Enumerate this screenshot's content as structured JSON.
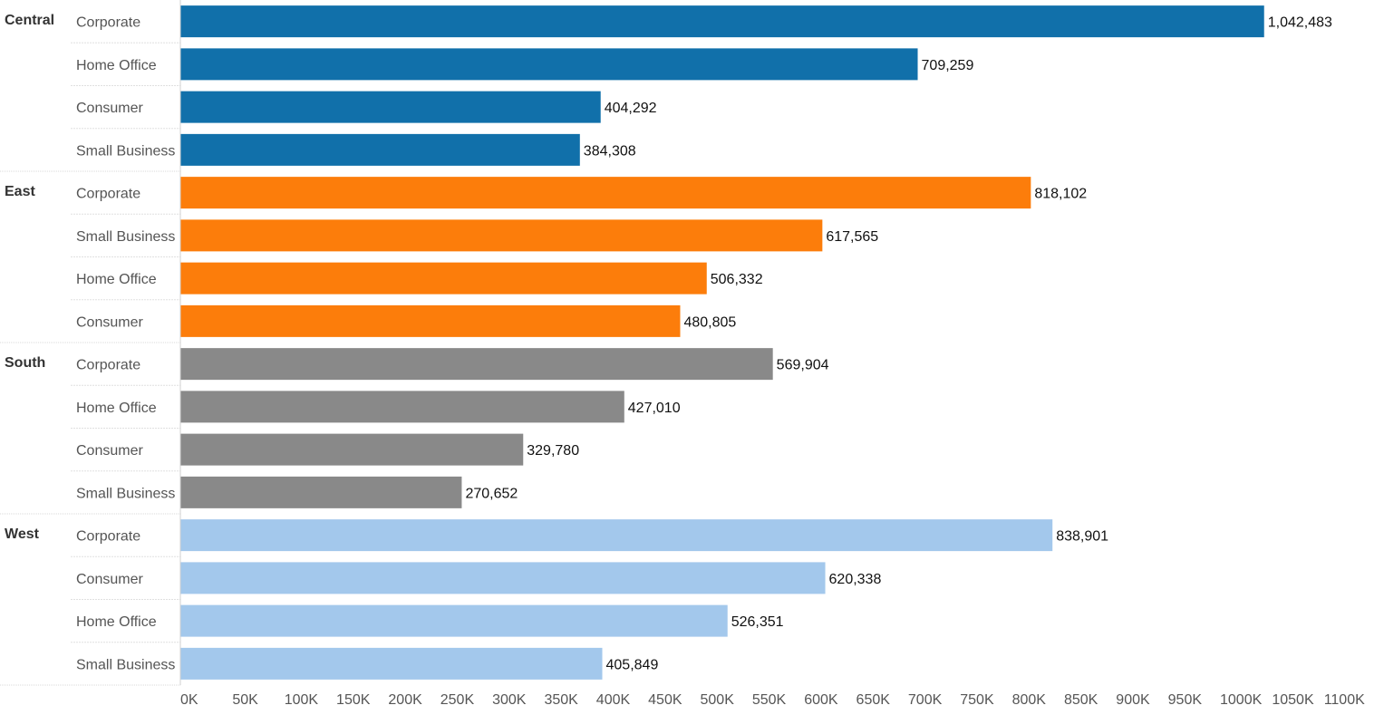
{
  "chart_data": {
    "type": "bar",
    "orientation": "horizontal",
    "xlim": [
      0,
      1100000
    ],
    "x_ticks": [
      {
        "value": 0,
        "label": "0K"
      },
      {
        "value": 50000,
        "label": "50K"
      },
      {
        "value": 100000,
        "label": "100K"
      },
      {
        "value": 150000,
        "label": "150K"
      },
      {
        "value": 200000,
        "label": "200K"
      },
      {
        "value": 250000,
        "label": "250K"
      },
      {
        "value": 300000,
        "label": "300K"
      },
      {
        "value": 350000,
        "label": "350K"
      },
      {
        "value": 400000,
        "label": "400K"
      },
      {
        "value": 450000,
        "label": "450K"
      },
      {
        "value": 500000,
        "label": "500K"
      },
      {
        "value": 550000,
        "label": "550K"
      },
      {
        "value": 600000,
        "label": "600K"
      },
      {
        "value": 650000,
        "label": "650K"
      },
      {
        "value": 700000,
        "label": "700K"
      },
      {
        "value": 750000,
        "label": "750K"
      },
      {
        "value": 800000,
        "label": "800K"
      },
      {
        "value": 850000,
        "label": "850K"
      },
      {
        "value": 900000,
        "label": "900K"
      },
      {
        "value": 950000,
        "label": "950K"
      },
      {
        "value": 1000000,
        "label": "1000K"
      },
      {
        "value": 1050000,
        "label": "1050K"
      },
      {
        "value": 1100000,
        "label": "1100K"
      }
    ],
    "grid": false,
    "groups": [
      {
        "name": "Central",
        "color": "#1170aa",
        "bars": [
          {
            "category": "Corporate",
            "value": 1042483,
            "label": "1,042,483"
          },
          {
            "category": "Home Office",
            "value": 709259,
            "label": "709,259"
          },
          {
            "category": "Consumer",
            "value": 404292,
            "label": "404,292"
          },
          {
            "category": "Small Business",
            "value": 384308,
            "label": "384,308"
          }
        ]
      },
      {
        "name": "East",
        "color": "#fc7d0b",
        "bars": [
          {
            "category": "Corporate",
            "value": 818102,
            "label": "818,102"
          },
          {
            "category": "Small Business",
            "value": 617565,
            "label": "617,565"
          },
          {
            "category": "Home Office",
            "value": 506332,
            "label": "506,332"
          },
          {
            "category": "Consumer",
            "value": 480805,
            "label": "480,805"
          }
        ]
      },
      {
        "name": "South",
        "color": "#898989",
        "bars": [
          {
            "category": "Corporate",
            "value": 569904,
            "label": "569,904"
          },
          {
            "category": "Home Office",
            "value": 427010,
            "label": "427,010"
          },
          {
            "category": "Consumer",
            "value": 329780,
            "label": "329,780"
          },
          {
            "category": "Small Business",
            "value": 270652,
            "label": "270,652"
          }
        ]
      },
      {
        "name": "West",
        "color": "#a3c8ec",
        "bars": [
          {
            "category": "Corporate",
            "value": 838901,
            "label": "838,901"
          },
          {
            "category": "Consumer",
            "value": 620338,
            "label": "620,338"
          },
          {
            "category": "Home Office",
            "value": 526351,
            "label": "526,351"
          },
          {
            "category": "Small Business",
            "value": 405849,
            "label": "405,849"
          }
        ]
      }
    ]
  }
}
